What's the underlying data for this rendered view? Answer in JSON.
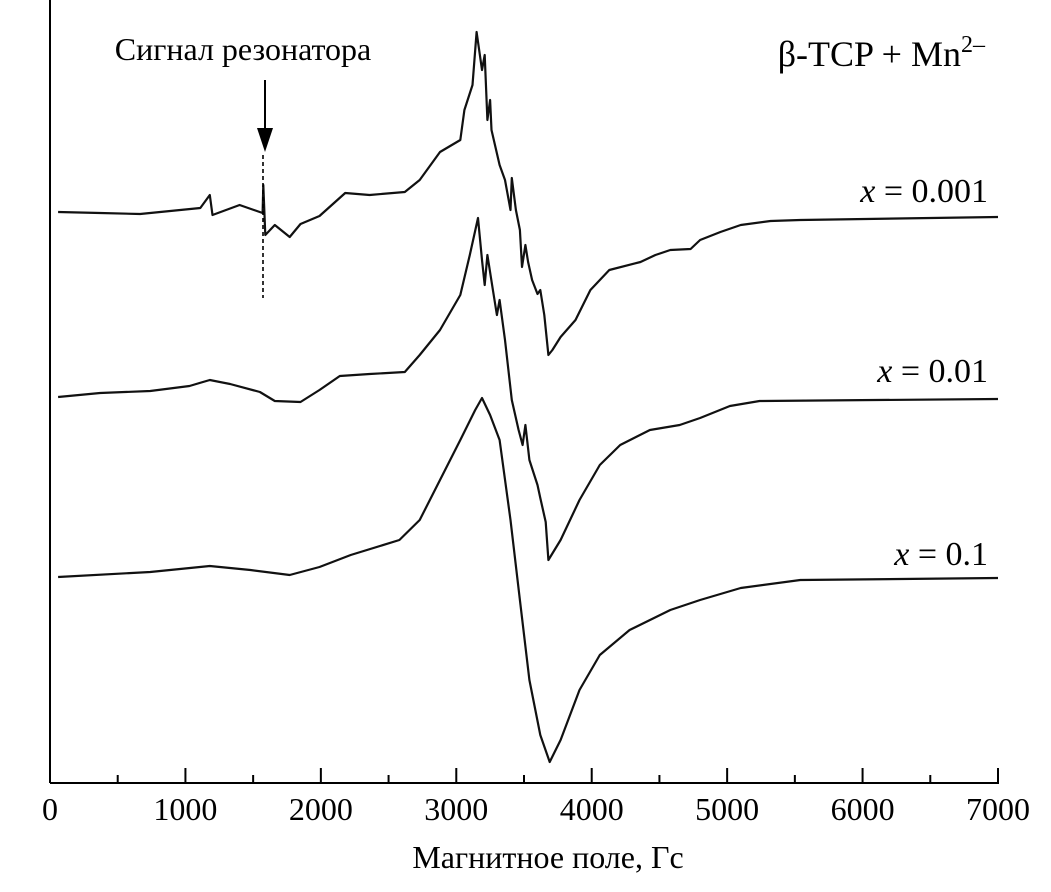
{
  "chart_data": {
    "type": "line",
    "title": "β-TCP + Mn2–",
    "title_main": "β-TCP + Mn",
    "title_sup": "2–",
    "xlabel": "Магнитное поле, Гс",
    "ylabel": "",
    "xlim": [
      0,
      7000
    ],
    "ylim": [
      0,
      76.3
    ],
    "x_ticks": [
      0,
      1000,
      2000,
      3000,
      4000,
      5000,
      6000,
      7000
    ],
    "x_minor_ticks": [
      500,
      1500,
      2500,
      3500,
      4500,
      5500,
      6500
    ],
    "grid": false,
    "legend": "none",
    "annotation": {
      "text": "Сигнал резонатора",
      "field": 1575
    },
    "series": [
      {
        "name": "x = 0.001",
        "label_var": "x",
        "label_rest": " = 0.001",
        "points": [
          [
            60,
            57.1
          ],
          [
            370,
            57.0
          ],
          [
            665,
            56.9
          ],
          [
            1110,
            57.5
          ],
          [
            1180,
            58.8
          ],
          [
            1200,
            56.8
          ],
          [
            1400,
            57.8
          ],
          [
            1570,
            57.0
          ],
          [
            1575,
            59.8
          ],
          [
            1590,
            54.8
          ],
          [
            1660,
            55.8
          ],
          [
            1770,
            54.6
          ],
          [
            1850,
            55.9
          ],
          [
            1990,
            56.7
          ],
          [
            2180,
            59.0
          ],
          [
            2360,
            58.8
          ],
          [
            2620,
            59.1
          ],
          [
            2730,
            60.3
          ],
          [
            2880,
            63.1
          ],
          [
            3030,
            64.3
          ],
          [
            3060,
            67.3
          ],
          [
            3120,
            69.8
          ],
          [
            3150,
            75.1
          ],
          [
            3190,
            71.3
          ],
          [
            3210,
            72.8
          ],
          [
            3230,
            66.3
          ],
          [
            3250,
            68.3
          ],
          [
            3260,
            65.3
          ],
          [
            3320,
            61.8
          ],
          [
            3360,
            60.3
          ],
          [
            3400,
            57.3
          ],
          [
            3410,
            60.5
          ],
          [
            3440,
            57.3
          ],
          [
            3470,
            55.3
          ],
          [
            3485,
            51.6
          ],
          [
            3510,
            53.8
          ],
          [
            3530,
            52.1
          ],
          [
            3560,
            50.3
          ],
          [
            3600,
            48.9
          ],
          [
            3620,
            49.3
          ],
          [
            3650,
            46.8
          ],
          [
            3680,
            42.8
          ],
          [
            3710,
            43.3
          ],
          [
            3770,
            44.6
          ],
          [
            3880,
            46.3
          ],
          [
            3990,
            49.3
          ],
          [
            4130,
            51.3
          ],
          [
            4360,
            52.1
          ],
          [
            4470,
            52.8
          ],
          [
            4580,
            53.3
          ],
          [
            4730,
            53.4
          ],
          [
            4800,
            54.3
          ],
          [
            4950,
            55.1
          ],
          [
            5100,
            55.8
          ],
          [
            5320,
            56.2
          ],
          [
            5540,
            56.3
          ],
          [
            7000,
            56.6
          ]
        ]
      },
      {
        "name": "x = 0.01",
        "label_var": "x",
        "label_rest": " = 0.01",
        "points": [
          [
            60,
            38.6
          ],
          [
            370,
            39.0
          ],
          [
            740,
            39.2
          ],
          [
            1030,
            39.7
          ],
          [
            1180,
            40.3
          ],
          [
            1330,
            39.9
          ],
          [
            1550,
            39.1
          ],
          [
            1660,
            38.2
          ],
          [
            1850,
            38.1
          ],
          [
            1990,
            39.3
          ],
          [
            2140,
            40.7
          ],
          [
            2360,
            40.9
          ],
          [
            2620,
            41.1
          ],
          [
            2730,
            42.8
          ],
          [
            2880,
            45.3
          ],
          [
            3030,
            48.8
          ],
          [
            3100,
            52.8
          ],
          [
            3160,
            56.5
          ],
          [
            3190,
            52.3
          ],
          [
            3210,
            49.8
          ],
          [
            3230,
            52.8
          ],
          [
            3270,
            49.3
          ],
          [
            3300,
            46.8
          ],
          [
            3320,
            48.3
          ],
          [
            3360,
            44.3
          ],
          [
            3410,
            38.3
          ],
          [
            3460,
            35.3
          ],
          [
            3490,
            33.8
          ],
          [
            3510,
            35.8
          ],
          [
            3540,
            32.3
          ],
          [
            3600,
            29.8
          ],
          [
            3620,
            28.5
          ],
          [
            3660,
            26.1
          ],
          [
            3680,
            22.3
          ],
          [
            3770,
            24.3
          ],
          [
            3910,
            28.3
          ],
          [
            4060,
            31.8
          ],
          [
            4210,
            33.8
          ],
          [
            4430,
            35.3
          ],
          [
            4650,
            35.8
          ],
          [
            4800,
            36.5
          ],
          [
            5020,
            37.7
          ],
          [
            5240,
            38.2
          ],
          [
            7000,
            38.4
          ]
        ]
      },
      {
        "name": "x = 0.1",
        "label_var": "x",
        "label_rest": " = 0.1",
        "points": [
          [
            60,
            20.6
          ],
          [
            740,
            21.1
          ],
          [
            1180,
            21.7
          ],
          [
            1480,
            21.3
          ],
          [
            1770,
            20.8
          ],
          [
            1990,
            21.6
          ],
          [
            2220,
            22.8
          ],
          [
            2580,
            24.3
          ],
          [
            2730,
            26.3
          ],
          [
            2880,
            30.3
          ],
          [
            3030,
            34.3
          ],
          [
            3140,
            37.3
          ],
          [
            3190,
            38.5
          ],
          [
            3250,
            36.8
          ],
          [
            3320,
            34.3
          ],
          [
            3400,
            26.3
          ],
          [
            3470,
            18.3
          ],
          [
            3540,
            10.3
          ],
          [
            3620,
            4.8
          ],
          [
            3690,
            2.1
          ],
          [
            3770,
            4.3
          ],
          [
            3910,
            9.3
          ],
          [
            4060,
            12.8
          ],
          [
            4280,
            15.3
          ],
          [
            4580,
            17.3
          ],
          [
            4800,
            18.3
          ],
          [
            5100,
            19.5
          ],
          [
            5540,
            20.3
          ],
          [
            7000,
            20.5
          ]
        ]
      }
    ]
  }
}
